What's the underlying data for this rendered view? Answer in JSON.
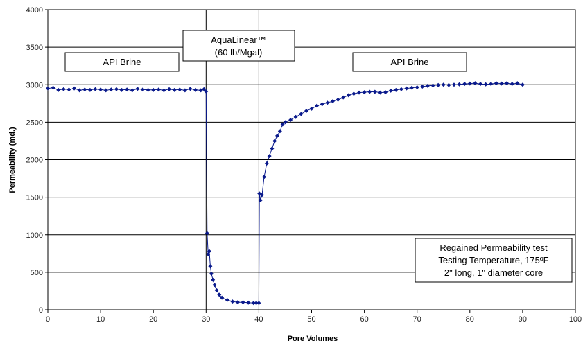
{
  "chart_data": {
    "type": "line",
    "xlabel": "Pore Volumes",
    "ylabel": "Permeability (md.)",
    "xlim": [
      0,
      100
    ],
    "ylim": [
      0,
      4000
    ],
    "xticks": [
      0,
      10,
      20,
      30,
      40,
      50,
      60,
      70,
      80,
      90,
      100
    ],
    "yticks": [
      0,
      500,
      1000,
      1500,
      2000,
      2500,
      3000,
      3500,
      4000
    ],
    "grid": "horizontal",
    "vlines": [
      30,
      40
    ],
    "series_color": "#0a1a8c",
    "series": [
      {
        "points": [
          [
            0,
            2950
          ],
          [
            1,
            2960
          ],
          [
            2,
            2930
          ],
          [
            3,
            2940
          ],
          [
            4,
            2935
          ],
          [
            5,
            2950
          ],
          [
            6,
            2925
          ],
          [
            7,
            2935
          ],
          [
            8,
            2930
          ],
          [
            9,
            2940
          ],
          [
            10,
            2935
          ],
          [
            11,
            2925
          ],
          [
            12,
            2935
          ],
          [
            13,
            2940
          ],
          [
            14,
            2930
          ],
          [
            15,
            2935
          ],
          [
            16,
            2925
          ],
          [
            17,
            2945
          ],
          [
            18,
            2935
          ],
          [
            19,
            2930
          ],
          [
            20,
            2930
          ],
          [
            21,
            2935
          ],
          [
            22,
            2925
          ],
          [
            23,
            2940
          ],
          [
            24,
            2930
          ],
          [
            25,
            2935
          ],
          [
            26,
            2925
          ],
          [
            27,
            2945
          ],
          [
            28,
            2930
          ],
          [
            29,
            2925
          ],
          [
            29.6,
            2940
          ],
          [
            30,
            2910
          ],
          [
            30.2,
            1020
          ],
          [
            30.4,
            740
          ],
          [
            30.6,
            780
          ],
          [
            30.8,
            580
          ],
          [
            31,
            480
          ],
          [
            31.3,
            400
          ],
          [
            31.6,
            330
          ],
          [
            32,
            260
          ],
          [
            32.5,
            200
          ],
          [
            33,
            160
          ],
          [
            34,
            130
          ],
          [
            35,
            110
          ],
          [
            36,
            100
          ],
          [
            37,
            100
          ],
          [
            38,
            95
          ],
          [
            39,
            90
          ],
          [
            39.5,
            90
          ],
          [
            40,
            90
          ],
          [
            40.1,
            1550
          ],
          [
            40.3,
            1460
          ],
          [
            40.6,
            1530
          ],
          [
            41,
            1770
          ],
          [
            41.5,
            1950
          ],
          [
            42,
            2050
          ],
          [
            42.5,
            2150
          ],
          [
            43,
            2250
          ],
          [
            43.5,
            2320
          ],
          [
            44,
            2380
          ],
          [
            44.5,
            2470
          ],
          [
            45,
            2500
          ],
          [
            46,
            2530
          ],
          [
            47,
            2570
          ],
          [
            48,
            2610
          ],
          [
            49,
            2650
          ],
          [
            50,
            2680
          ],
          [
            51,
            2720
          ],
          [
            52,
            2740
          ],
          [
            53,
            2760
          ],
          [
            54,
            2780
          ],
          [
            55,
            2800
          ],
          [
            56,
            2830
          ],
          [
            57,
            2860
          ],
          [
            58,
            2880
          ],
          [
            59,
            2895
          ],
          [
            60,
            2900
          ],
          [
            61,
            2905
          ],
          [
            62,
            2905
          ],
          [
            63,
            2895
          ],
          [
            64,
            2900
          ],
          [
            65,
            2920
          ],
          [
            66,
            2930
          ],
          [
            67,
            2940
          ],
          [
            68,
            2950
          ],
          [
            69,
            2960
          ],
          [
            70,
            2965
          ],
          [
            71,
            2975
          ],
          [
            72,
            2985
          ],
          [
            73,
            2990
          ],
          [
            74,
            2995
          ],
          [
            75,
            3000
          ],
          [
            76,
            2995
          ],
          [
            77,
            3000
          ],
          [
            78,
            3005
          ],
          [
            79,
            3010
          ],
          [
            80,
            3015
          ],
          [
            81,
            3020
          ],
          [
            82,
            3010
          ],
          [
            83,
            3005
          ],
          [
            84,
            3010
          ],
          [
            85,
            3020
          ],
          [
            86,
            3015
          ],
          [
            87,
            3020
          ],
          [
            88,
            3010
          ],
          [
            89,
            3020
          ],
          [
            90,
            3000
          ]
        ]
      }
    ],
    "annotations": {
      "brine_left": "API Brine",
      "aqualinear_line1": "AquaLinear™",
      "aqualinear_line2": "(60 lb/Mgal)",
      "brine_right": "API Brine",
      "info_line1": "Regained Permeability test",
      "info_line2": "Testing Temperature, 175ºF",
      "info_line3": "2\" long, 1\" diameter core"
    }
  }
}
